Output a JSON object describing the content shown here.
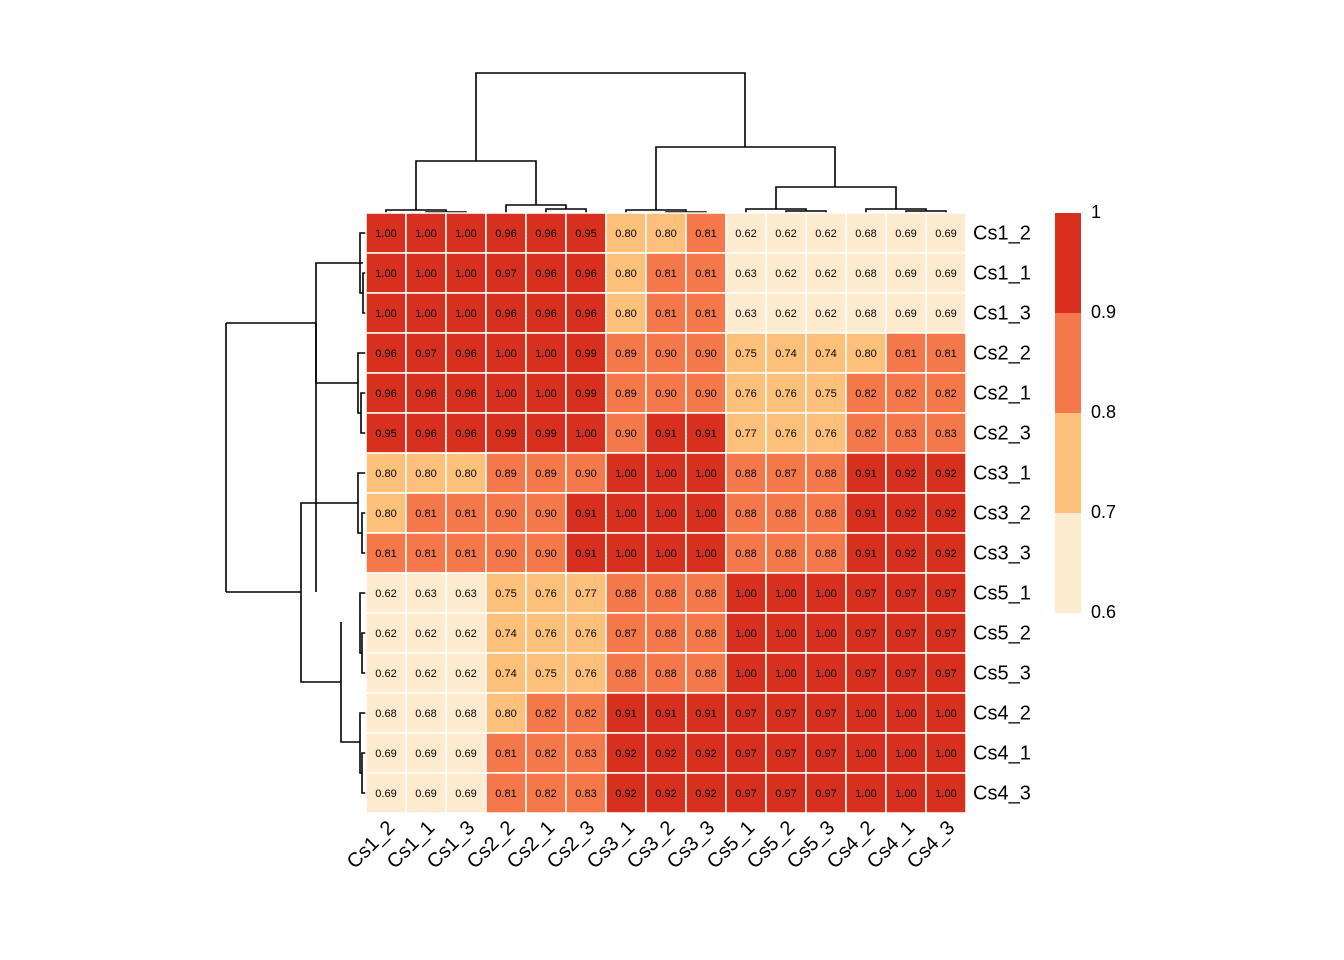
{
  "chart_data": {
    "type": "heatmap",
    "x_categories": [
      "Cs1_2",
      "Cs1_1",
      "Cs1_3",
      "Cs2_2",
      "Cs2_1",
      "Cs2_3",
      "Cs3_1",
      "Cs3_2",
      "Cs3_3",
      "Cs5_1",
      "Cs5_2",
      "Cs5_3",
      "Cs4_2",
      "Cs4_1",
      "Cs4_3"
    ],
    "y_categories": [
      "Cs1_2",
      "Cs1_1",
      "Cs1_3",
      "Cs2_2",
      "Cs2_1",
      "Cs2_3",
      "Cs3_1",
      "Cs3_2",
      "Cs3_3",
      "Cs5_1",
      "Cs5_2",
      "Cs5_3",
      "Cs4_2",
      "Cs4_1",
      "Cs4_3"
    ],
    "values": [
      [
        1.0,
        1.0,
        1.0,
        0.96,
        0.96,
        0.95,
        0.8,
        0.8,
        0.81,
        0.62,
        0.62,
        0.62,
        0.68,
        0.69,
        0.69
      ],
      [
        1.0,
        1.0,
        1.0,
        0.97,
        0.96,
        0.96,
        0.8,
        0.81,
        0.81,
        0.63,
        0.62,
        0.62,
        0.68,
        0.69,
        0.69
      ],
      [
        1.0,
        1.0,
        1.0,
        0.96,
        0.96,
        0.96,
        0.8,
        0.81,
        0.81,
        0.63,
        0.62,
        0.62,
        0.68,
        0.69,
        0.69
      ],
      [
        0.96,
        0.97,
        0.96,
        1.0,
        1.0,
        0.99,
        0.89,
        0.9,
        0.9,
        0.75,
        0.74,
        0.74,
        0.8,
        0.81,
        0.81
      ],
      [
        0.96,
        0.96,
        0.96,
        1.0,
        1.0,
        0.99,
        0.89,
        0.9,
        0.9,
        0.76,
        0.76,
        0.75,
        0.82,
        0.82,
        0.82
      ],
      [
        0.95,
        0.96,
        0.96,
        0.99,
        0.99,
        1.0,
        0.9,
        0.91,
        0.91,
        0.77,
        0.76,
        0.76,
        0.82,
        0.83,
        0.83
      ],
      [
        0.8,
        0.8,
        0.8,
        0.89,
        0.89,
        0.9,
        1.0,
        1.0,
        1.0,
        0.88,
        0.87,
        0.88,
        0.91,
        0.92,
        0.92
      ],
      [
        0.8,
        0.81,
        0.81,
        0.9,
        0.9,
        0.91,
        1.0,
        1.0,
        1.0,
        0.88,
        0.88,
        0.88,
        0.91,
        0.92,
        0.92
      ],
      [
        0.81,
        0.81,
        0.81,
        0.9,
        0.9,
        0.91,
        1.0,
        1.0,
        1.0,
        0.88,
        0.88,
        0.88,
        0.91,
        0.92,
        0.92
      ],
      [
        0.62,
        0.63,
        0.63,
        0.75,
        0.76,
        0.77,
        0.88,
        0.88,
        0.88,
        1.0,
        1.0,
        1.0,
        0.97,
        0.97,
        0.97
      ],
      [
        0.62,
        0.62,
        0.62,
        0.74,
        0.76,
        0.76,
        0.87,
        0.88,
        0.88,
        1.0,
        1.0,
        1.0,
        0.97,
        0.97,
        0.97
      ],
      [
        0.62,
        0.62,
        0.62,
        0.74,
        0.75,
        0.76,
        0.88,
        0.88,
        0.88,
        1.0,
        1.0,
        1.0,
        0.97,
        0.97,
        0.97
      ],
      [
        0.68,
        0.68,
        0.68,
        0.8,
        0.82,
        0.82,
        0.91,
        0.91,
        0.91,
        0.97,
        0.97,
        0.97,
        1.0,
        1.0,
        1.0
      ],
      [
        0.69,
        0.69,
        0.69,
        0.81,
        0.82,
        0.83,
        0.92,
        0.92,
        0.92,
        0.97,
        0.97,
        0.97,
        1.0,
        1.0,
        1.0
      ],
      [
        0.69,
        0.69,
        0.69,
        0.81,
        0.82,
        0.83,
        0.92,
        0.92,
        0.92,
        0.97,
        0.97,
        0.97,
        1.0,
        1.0,
        1.0
      ]
    ],
    "value_labels": [
      [
        "1.00",
        "1.00",
        "1.00",
        "0.96",
        "0.96",
        "0.95",
        "0.80",
        "0.80",
        "0.81",
        "0.62",
        "0.62",
        "0.62",
        "0.68",
        "0.69",
        "0.69"
      ],
      [
        "1.00",
        "1.00",
        "1.00",
        "0.97",
        "0.96",
        "0.96",
        "0.80",
        "0.81",
        "0.81",
        "0.63",
        "0.62",
        "0.62",
        "0.68",
        "0.69",
        "0.69"
      ],
      [
        "1.00",
        "1.00",
        "1.00",
        "0.96",
        "0.96",
        "0.96",
        "0.80",
        "0.81",
        "0.81",
        "0.63",
        "0.62",
        "0.62",
        "0.68",
        "0.69",
        "0.69"
      ],
      [
        "0.96",
        "0.97",
        "0.96",
        "1.00",
        "1.00",
        "0.99",
        "0.89",
        "0.90",
        "0.90",
        "0.75",
        "0.74",
        "0.74",
        "0.80",
        "0.81",
        "0.81"
      ],
      [
        "0.96",
        "0.96",
        "0.96",
        "1.00",
        "1.00",
        "0.99",
        "0.89",
        "0.90",
        "0.90",
        "0.76",
        "0.76",
        "0.75",
        "0.82",
        "0.82",
        "0.82"
      ],
      [
        "0.95",
        "0.96",
        "0.96",
        "0.99",
        "0.99",
        "1.00",
        "0.90",
        "0.91",
        "0.91",
        "0.77",
        "0.76",
        "0.76",
        "0.82",
        "0.83",
        "0.83"
      ],
      [
        "0.80",
        "0.80",
        "0.80",
        "0.89",
        "0.89",
        "0.90",
        "1.00",
        "1.00",
        "1.00",
        "0.88",
        "0.87",
        "0.88",
        "0.91",
        "0.92",
        "0.92"
      ],
      [
        "0.80",
        "0.81",
        "0.81",
        "0.90",
        "0.90",
        "0.91",
        "1.00",
        "1.00",
        "1.00",
        "0.88",
        "0.88",
        "0.88",
        "0.91",
        "0.92",
        "0.92"
      ],
      [
        "0.81",
        "0.81",
        "0.81",
        "0.90",
        "0.90",
        "0.91",
        "1.00",
        "1.00",
        "1.00",
        "0.88",
        "0.88",
        "0.88",
        "0.91",
        "0.92",
        "0.92"
      ],
      [
        "0.62",
        "0.63",
        "0.63",
        "0.75",
        "0.76",
        "0.77",
        "0.88",
        "0.88",
        "0.88",
        "1.00",
        "1.00",
        "1.00",
        "0.97",
        "0.97",
        "0.97"
      ],
      [
        "0.62",
        "0.62",
        "0.62",
        "0.74",
        "0.76",
        "0.76",
        "0.87",
        "0.88",
        "0.88",
        "1.00",
        "1.00",
        "1.00",
        "0.97",
        "0.97",
        "0.97"
      ],
      [
        "0.62",
        "0.62",
        "0.62",
        "0.74",
        "0.75",
        "0.76",
        "0.88",
        "0.88",
        "0.88",
        "1.00",
        "1.00",
        "1.00",
        "0.97",
        "0.97",
        "0.97"
      ],
      [
        "0.68",
        "0.68",
        "0.68",
        "0.80",
        "0.82",
        "0.82",
        "0.91",
        "0.91",
        "0.91",
        "0.97",
        "0.97",
        "0.97",
        "1.00",
        "1.00",
        "1.00"
      ],
      [
        "0.69",
        "0.69",
        "0.69",
        "0.81",
        "0.82",
        "0.83",
        "0.92",
        "0.92",
        "0.92",
        "0.97",
        "0.97",
        "0.97",
        "1.00",
        "1.00",
        "1.00"
      ],
      [
        "0.69",
        "0.69",
        "0.69",
        "0.81",
        "0.82",
        "0.83",
        "0.92",
        "0.92",
        "0.92",
        "0.97",
        "0.97",
        "0.97",
        "1.00",
        "1.00",
        "1.00"
      ]
    ],
    "zlim": [
      0.6,
      1
    ],
    "zticks": [
      0.6,
      0.7,
      0.8,
      0.9,
      1
    ],
    "colors": [
      "#fdebcf",
      "#fdc07b",
      "#f4784a",
      "#d7301f"
    ]
  }
}
